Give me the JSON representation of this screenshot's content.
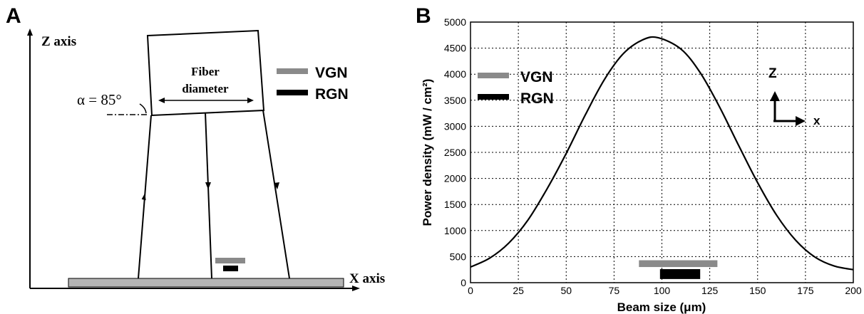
{
  "panel_a": {
    "letter": "A",
    "z_axis_label": "Z axis",
    "x_axis_label": "X axis",
    "fiber_label_line1": "Fiber",
    "fiber_label_line2": "diameter",
    "angle_label": "α = 85°",
    "legend": [
      {
        "label": "VGN",
        "color": "#8a8a8a"
      },
      {
        "label": "RGN",
        "color": "#000000"
      }
    ],
    "colors": {
      "substrate": "#b4b4b4",
      "vgn": "#8a8a8a",
      "rgn": "#000000"
    }
  },
  "panel_b": {
    "letter": "B",
    "legend": [
      {
        "label": "VGN",
        "color": "#8a8a8a"
      },
      {
        "label": "RGN",
        "color": "#000000"
      }
    ],
    "axes_icon": {
      "z": "Z",
      "x": "x"
    }
  },
  "chart_data": {
    "type": "line",
    "title": "",
    "xlabel": "Beam size (μm)",
    "ylabel": "Power density (mW / cm²)",
    "xlim": [
      0,
      200
    ],
    "ylim": [
      0,
      5000
    ],
    "xticks": [
      0,
      25,
      50,
      75,
      100,
      125,
      150,
      175,
      200
    ],
    "yticks": [
      0,
      500,
      1000,
      1500,
      2000,
      2500,
      3000,
      3500,
      4000,
      4500,
      5000
    ],
    "grid": true,
    "series": [
      {
        "x": [
          0,
          10,
          20,
          30,
          40,
          50,
          60,
          70,
          80,
          90,
          98,
          110,
          120,
          130,
          140,
          150,
          160,
          170,
          180,
          190,
          200
        ],
        "values": [
          300,
          470,
          760,
          1200,
          1800,
          2480,
          3220,
          3900,
          4400,
          4660,
          4700,
          4480,
          4030,
          3380,
          2640,
          1920,
          1290,
          810,
          490,
          320,
          250
        ]
      }
    ],
    "bars": [
      {
        "label": "VGN",
        "x_start": 88,
        "x_end": 129,
        "y_start": 300,
        "y_end": 430,
        "color": "#8a8a8a"
      },
      {
        "label": "RGN",
        "x_start": 99,
        "x_end": 120,
        "y_start": 70,
        "y_end": 260,
        "color": "#000000"
      }
    ],
    "legend_position": "top-left"
  }
}
